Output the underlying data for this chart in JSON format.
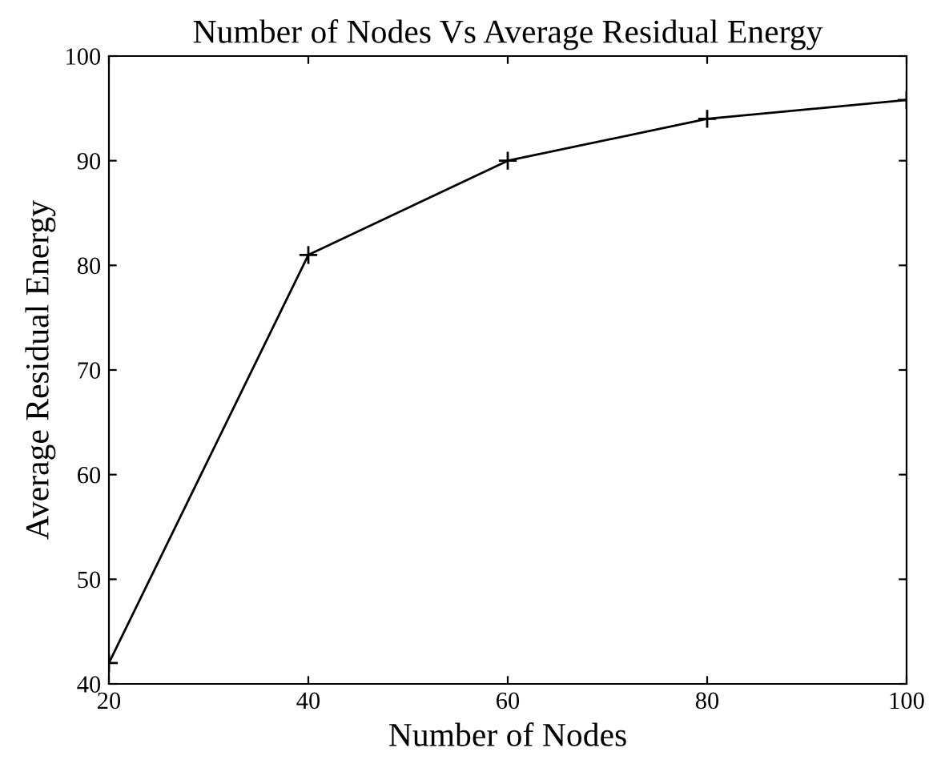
{
  "chart_data": {
    "type": "line",
    "title": "Number of Nodes Vs Average Residual Energy",
    "xlabel": "Number of Nodes",
    "ylabel": "Average Residual Energy",
    "x": [
      20,
      40,
      60,
      80,
      100
    ],
    "series": [
      {
        "color": "#000000",
        "values": [
          42,
          81,
          90,
          94,
          95.8
        ]
      }
    ],
    "xlim": [
      20,
      100
    ],
    "xticks": [
      20,
      40,
      60,
      80,
      100
    ],
    "ylim": [
      40,
      100
    ],
    "yticks": [
      40,
      50,
      60,
      70,
      80,
      90,
      100
    ],
    "grid": false,
    "legend": false,
    "marker": "star",
    "line_style": "solid"
  }
}
